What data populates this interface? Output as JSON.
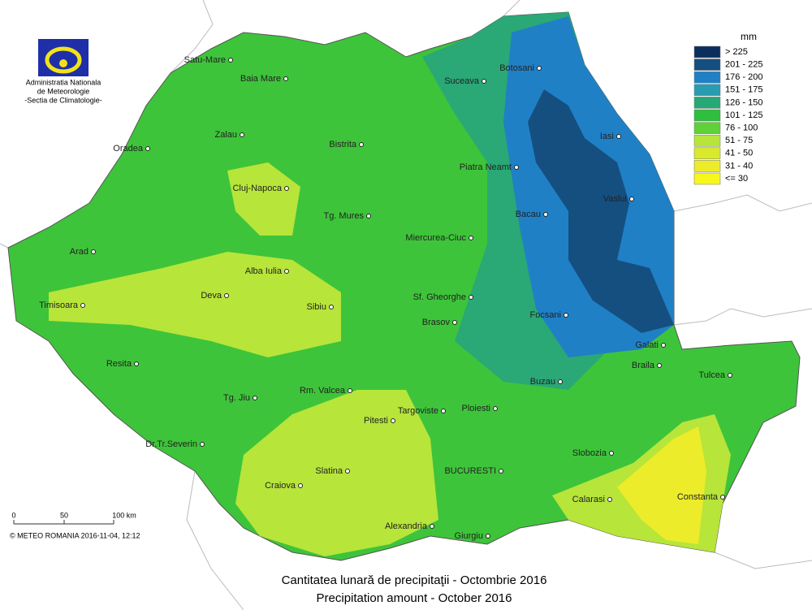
{
  "logo": {
    "lines": [
      "Administratia Nationala",
      "de Meteorologie",
      "-Sectia de Climatologie-"
    ]
  },
  "legend": {
    "unit": "mm",
    "items": [
      {
        "label": "> 225",
        "color": "#0b2f5c"
      },
      {
        "label": "201 - 225",
        "color": "#154f80"
      },
      {
        "label": "176 - 200",
        "color": "#1f80c6"
      },
      {
        "label": "151 - 175",
        "color": "#2a9cb2"
      },
      {
        "label": "126 - 150",
        "color": "#27a877"
      },
      {
        "label": "101 - 125",
        "color": "#2fbe3d"
      },
      {
        "label": "76 - 100",
        "color": "#5fd23a"
      },
      {
        "label": "51 - 75",
        "color": "#b7e53a"
      },
      {
        "label": "41 - 50",
        "color": "#d9ea2e"
      },
      {
        "label": "31 - 40",
        "color": "#ecec2a"
      },
      {
        "label": "<= 30",
        "color": "#f7f71c"
      }
    ]
  },
  "cities": [
    "Satu-Mare",
    "Baia Mare",
    "Botosani",
    "Suceava",
    "Zalau",
    "Bistrita",
    "Iasi",
    "Oradea",
    "Piatra Neamt",
    "Cluj-Napoca",
    "Vaslui",
    "Tg. Mures",
    "Bacau",
    "Miercurea-Ciuc",
    "Arad",
    "Alba Iulia",
    "Timisoara",
    "Deva",
    "Sf. Gheorghe",
    "Sibiu",
    "Focsani",
    "Brasov",
    "Galati",
    "Resita",
    "Braila",
    "Tulcea",
    "Buzau",
    "Tg. Jiu",
    "Rm. Valcea",
    "Targoviste",
    "Ploiesti",
    "Pitesti",
    "Dr.Tr.Severin",
    "Slobozia",
    "Slatina",
    "BUCURESTI",
    "Craiova",
    "Calarasi",
    "Constanta",
    "Alexandria",
    "Giurgiu"
  ],
  "scale": {
    "labels": [
      "0",
      "50",
      "100 km"
    ]
  },
  "copyright": "© METEO ROMANIA 2016-11-04, 12:12",
  "title": {
    "ro": "Cantitatea lunară de precipitaţii - Octombrie 2016",
    "en": "Precipitation amount -  October 2016"
  }
}
